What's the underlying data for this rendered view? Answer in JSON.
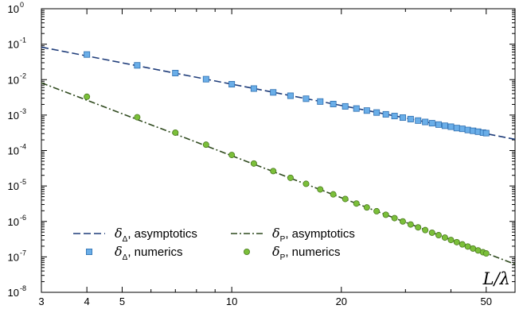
{
  "chart_data": {
    "type": "scatter",
    "title": "",
    "xlabel": "L/λ",
    "ylabel": "",
    "x_scale": "log",
    "y_scale": "log",
    "xlim": [
      3,
      60
    ],
    "ylim": [
      1e-08,
      1
    ],
    "x_ticks": [
      {
        "value": 3,
        "label": "3"
      },
      {
        "value": 4,
        "label": "4"
      },
      {
        "value": 5,
        "label": "5"
      },
      {
        "value": 10,
        "label": "10"
      },
      {
        "value": 20,
        "label": "20"
      },
      {
        "value": 50,
        "label": "50"
      }
    ],
    "y_ticks": [
      {
        "value": 1e-08,
        "base": "10",
        "exp": "-8"
      },
      {
        "value": 1e-07,
        "base": "10",
        "exp": "-7"
      },
      {
        "value": 1e-06,
        "base": "10",
        "exp": "-6"
      },
      {
        "value": 1e-05,
        "base": "10",
        "exp": "-5"
      },
      {
        "value": 0.0001,
        "base": "10",
        "exp": "-4"
      },
      {
        "value": 0.001,
        "base": "10",
        "exp": "-3"
      },
      {
        "value": 0.01,
        "base": "10",
        "exp": "-2"
      },
      {
        "value": 0.1,
        "base": "10",
        "exp": "-1"
      },
      {
        "value": 1,
        "base": "10",
        "exp": "0"
      }
    ],
    "grid": false,
    "legend_position": "bottom-left",
    "series": [
      {
        "name": "δΔ, asymptotics",
        "kind": "line",
        "style": "dashed",
        "color": "#1f3d7a",
        "x": [
          3,
          60
        ],
        "y": [
          0.0827,
          0.000207
        ]
      },
      {
        "name": "δΔ, numerics",
        "kind": "markers",
        "marker": "square",
        "color": "#6aaee8",
        "edge_color": "#2f6fb0",
        "x": [
          4,
          5.5,
          7,
          8.5,
          10,
          11.5,
          13,
          14.5,
          16,
          17.5,
          19,
          20.5,
          22,
          23.5,
          25,
          26.5,
          28,
          29.5,
          31,
          32.5,
          34,
          35.5,
          37,
          38.5,
          40,
          41.5,
          43,
          44.5,
          46,
          47.5,
          49,
          50
        ],
        "y": [
          0.0511,
          0.0253,
          0.0153,
          0.0103,
          0.00742,
          0.0056,
          0.00437,
          0.00351,
          0.00289,
          0.00241,
          0.00205,
          0.00176,
          0.00153,
          0.00134,
          0.00118,
          0.00105,
          0.00094,
          0.00085,
          0.00077,
          0.0007,
          0.00064,
          0.00059,
          0.00054,
          0.0005,
          0.00047,
          0.00043,
          0.00041,
          0.00038,
          0.00036,
          0.00034,
          0.00032,
          0.00031
        ]
      },
      {
        "name": "δP, asymptotics",
        "kind": "line",
        "style": "dashdot",
        "color": "#2f4a1e",
        "x": [
          3,
          60
        ],
        "y": [
          0.00815,
          6.2e-08
        ]
      },
      {
        "name": "δP, numerics",
        "kind": "markers",
        "marker": "circle",
        "color": "#7bbf3a",
        "edge_color": "#4a7a1f",
        "x": [
          4,
          5.5,
          7,
          8.5,
          10,
          11.5,
          13,
          14.5,
          16,
          17.5,
          19,
          20.5,
          22,
          23.5,
          25,
          26.5,
          28,
          29.5,
          31,
          32.5,
          34,
          35.5,
          37,
          38.5,
          40,
          41.5,
          43,
          44.5,
          46,
          47.5,
          49,
          50
        ],
        "y": [
          0.00329,
          0.00087,
          0.00032,
          0.000146,
          7.5e-05,
          4.3e-05,
          2.63e-05,
          1.7e-05,
          1.15e-05,
          8e-06,
          5.8e-06,
          4.3e-06,
          3.2e-06,
          2.48e-06,
          1.94e-06,
          1.54e-06,
          1.24e-06,
          1e-06,
          8.2e-07,
          6.8e-07,
          5.7e-07,
          4.8e-07,
          4.1e-07,
          3.5e-07,
          3e-07,
          2.6e-07,
          2.25e-07,
          1.96e-07,
          1.72e-07,
          1.52e-07,
          1.35e-07,
          1.25e-07
        ]
      }
    ],
    "legend": [
      {
        "symbol": "δ",
        "sub": "Δ",
        "text": ", asymptotics",
        "series": 0
      },
      {
        "symbol": "δ",
        "sub": "Δ",
        "text": ", numerics",
        "series": 1
      },
      {
        "symbol": "δ",
        "sub": "P",
        "text": ", asymptotics",
        "series": 2
      },
      {
        "symbol": "δ",
        "sub": "P",
        "text": ", numerics",
        "series": 3
      }
    ]
  }
}
